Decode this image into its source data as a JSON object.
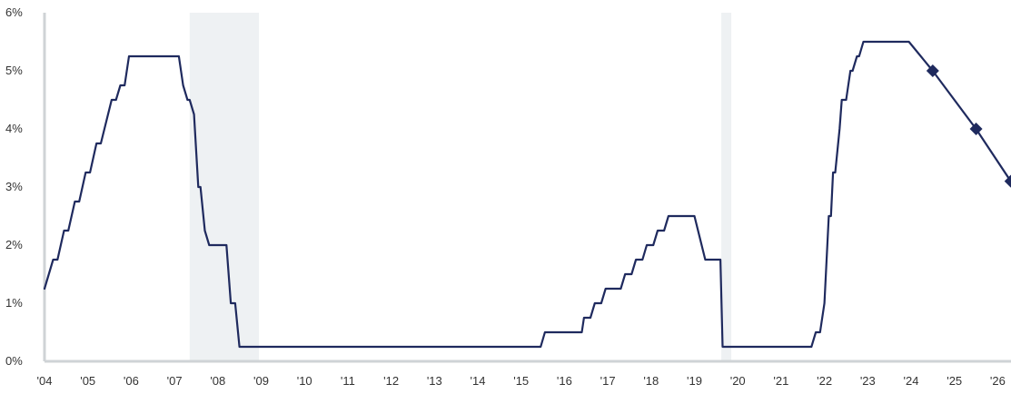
{
  "chart_data": {
    "type": "line",
    "title": "",
    "xlabel": "",
    "ylabel": "",
    "xlim": [
      2004,
      2026.3
    ],
    "ylim": [
      0,
      6
    ],
    "grid": false,
    "x_ticks": [
      {
        "x": 2004,
        "label": "'04"
      },
      {
        "x": 2005,
        "label": "'05"
      },
      {
        "x": 2006,
        "label": "'06"
      },
      {
        "x": 2007,
        "label": "'07"
      },
      {
        "x": 2008,
        "label": "'08"
      },
      {
        "x": 2009,
        "label": "'09"
      },
      {
        "x": 2010,
        "label": "'10"
      },
      {
        "x": 2011,
        "label": "'11"
      },
      {
        "x": 2012,
        "label": "'12"
      },
      {
        "x": 2013,
        "label": "'13"
      },
      {
        "x": 2014,
        "label": "'14"
      },
      {
        "x": 2015,
        "label": "'15"
      },
      {
        "x": 2016,
        "label": "'16"
      },
      {
        "x": 2017,
        "label": "'17"
      },
      {
        "x": 2018,
        "label": "'18"
      },
      {
        "x": 2019,
        "label": "'19"
      },
      {
        "x": 2020,
        "label": "'20"
      },
      {
        "x": 2021,
        "label": "'21"
      },
      {
        "x": 2022,
        "label": "'22"
      },
      {
        "x": 2023,
        "label": "'23"
      },
      {
        "x": 2024,
        "label": "'24"
      },
      {
        "x": 2025,
        "label": "'25"
      },
      {
        "x": 2026,
        "label": "'26"
      }
    ],
    "y_ticks": [
      {
        "y": 0,
        "label": "0%"
      },
      {
        "y": 1,
        "label": "1%"
      },
      {
        "y": 2,
        "label": "2%"
      },
      {
        "y": 3,
        "label": "3%"
      },
      {
        "y": 4,
        "label": "4%"
      },
      {
        "y": 5,
        "label": "5%"
      },
      {
        "y": 6,
        "label": "6%"
      }
    ],
    "shaded_periods": [
      {
        "start": 2007.35,
        "end": 2008.95
      },
      {
        "start": 2019.62,
        "end": 2019.85
      }
    ],
    "series": [
      {
        "color": "#1f2a5e",
        "points": [
          [
            2004.0,
            1.25
          ],
          [
            2004.2,
            1.75
          ],
          [
            2004.3,
            1.75
          ],
          [
            2004.45,
            2.25
          ],
          [
            2004.55,
            2.25
          ],
          [
            2004.7,
            2.75
          ],
          [
            2004.8,
            2.75
          ],
          [
            2004.95,
            3.25
          ],
          [
            2005.05,
            3.25
          ],
          [
            2005.2,
            3.75
          ],
          [
            2005.3,
            3.75
          ],
          [
            2005.55,
            4.5
          ],
          [
            2005.65,
            4.5
          ],
          [
            2005.75,
            4.75
          ],
          [
            2005.85,
            4.75
          ],
          [
            2005.95,
            5.25
          ],
          [
            2007.1,
            5.25
          ],
          [
            2007.2,
            4.75
          ],
          [
            2007.3,
            4.5
          ],
          [
            2007.35,
            4.5
          ],
          [
            2007.45,
            4.25
          ],
          [
            2007.55,
            3.0
          ],
          [
            2007.6,
            3.0
          ],
          [
            2007.7,
            2.25
          ],
          [
            2007.8,
            2.0
          ],
          [
            2008.2,
            2.0
          ],
          [
            2008.3,
            1.0
          ],
          [
            2008.4,
            1.0
          ],
          [
            2008.5,
            0.25
          ],
          [
            2015.45,
            0.25
          ],
          [
            2015.55,
            0.5
          ],
          [
            2016.4,
            0.5
          ],
          [
            2016.45,
            0.75
          ],
          [
            2016.6,
            0.75
          ],
          [
            2016.7,
            1.0
          ],
          [
            2016.85,
            1.0
          ],
          [
            2016.95,
            1.25
          ],
          [
            2017.3,
            1.25
          ],
          [
            2017.4,
            1.5
          ],
          [
            2017.55,
            1.5
          ],
          [
            2017.65,
            1.75
          ],
          [
            2017.8,
            1.75
          ],
          [
            2017.9,
            2.0
          ],
          [
            2018.05,
            2.0
          ],
          [
            2018.15,
            2.25
          ],
          [
            2018.3,
            2.25
          ],
          [
            2018.4,
            2.5
          ],
          [
            2019.0,
            2.5
          ],
          [
            2019.25,
            1.75
          ],
          [
            2019.6,
            1.75
          ],
          [
            2019.65,
            0.25
          ],
          [
            2021.7,
            0.25
          ],
          [
            2021.8,
            0.5
          ],
          [
            2021.9,
            0.5
          ],
          [
            2022.0,
            1.0
          ],
          [
            2022.1,
            2.5
          ],
          [
            2022.15,
            2.5
          ],
          [
            2022.2,
            3.25
          ],
          [
            2022.25,
            3.25
          ],
          [
            2022.35,
            4.0
          ],
          [
            2022.4,
            4.5
          ],
          [
            2022.5,
            4.5
          ],
          [
            2022.6,
            5.0
          ],
          [
            2022.65,
            5.0
          ],
          [
            2022.75,
            5.25
          ],
          [
            2022.8,
            5.25
          ],
          [
            2022.9,
            5.5
          ],
          [
            2023.95,
            5.5
          ],
          [
            2024.5,
            5.0
          ],
          [
            2025.5,
            4.0
          ],
          [
            2026.3,
            3.1
          ]
        ],
        "markers": [
          [
            2024.5,
            5.0
          ],
          [
            2025.5,
            4.0
          ],
          [
            2026.3,
            3.1
          ]
        ]
      }
    ]
  }
}
